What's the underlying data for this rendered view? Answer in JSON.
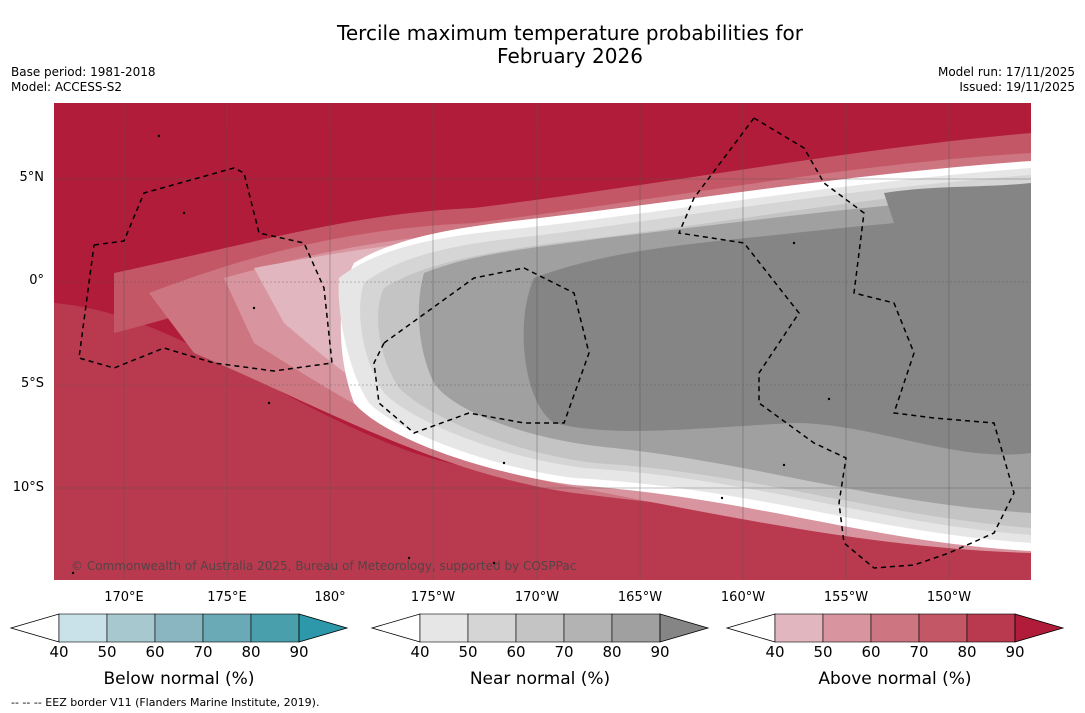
{
  "title": {
    "line1": "Tercile maximum temperature probabilities for",
    "line2": "February 2026"
  },
  "meta_left": {
    "base_period": "Base period: 1981-2018",
    "model": "Model: ACCESS-S2"
  },
  "meta_right": {
    "model_run": "Model run: 17/11/2025",
    "issued": "Issued: 19/11/2025"
  },
  "axes": {
    "lat_labels": [
      "5°N",
      "0°",
      "5°S",
      "10°S"
    ],
    "lon_labels": [
      "170°E",
      "175°E",
      "180°",
      "175°W",
      "170°W",
      "165°W",
      "160°W",
      "155°W",
      "150°W"
    ]
  },
  "copyright": "© Commonwealth of Australia 2025, Bureau of Meteorology, supported by COSPPac",
  "colorbars": [
    {
      "label": "Below normal (%)",
      "ticks": [
        "40",
        "50",
        "60",
        "70",
        "80",
        "90"
      ],
      "colors": [
        "#ffffff",
        "#c9e1e8",
        "#a8c8cf",
        "#89b6c1",
        "#6aa9b6",
        "#4a9fad",
        "#2d98aa"
      ]
    },
    {
      "label": "Near normal (%)",
      "ticks": [
        "40",
        "50",
        "60",
        "70",
        "80",
        "90"
      ],
      "colors": [
        "#ffffff",
        "#e6e6e6",
        "#d5d5d5",
        "#c4c4c4",
        "#b3b3b3",
        "#a0a0a0",
        "#858585"
      ]
    },
    {
      "label": "Above normal (%)",
      "ticks": [
        "40",
        "50",
        "60",
        "70",
        "80",
        "90"
      ],
      "colors": [
        "#ffffff",
        "#e2b6be",
        "#d8959f",
        "#cd7580",
        "#c45766",
        "#b93a4f",
        "#b01c39"
      ]
    }
  ],
  "footer": "--  --  -- EEZ border V11 (Flanders Marine Institute, 2019)."
}
